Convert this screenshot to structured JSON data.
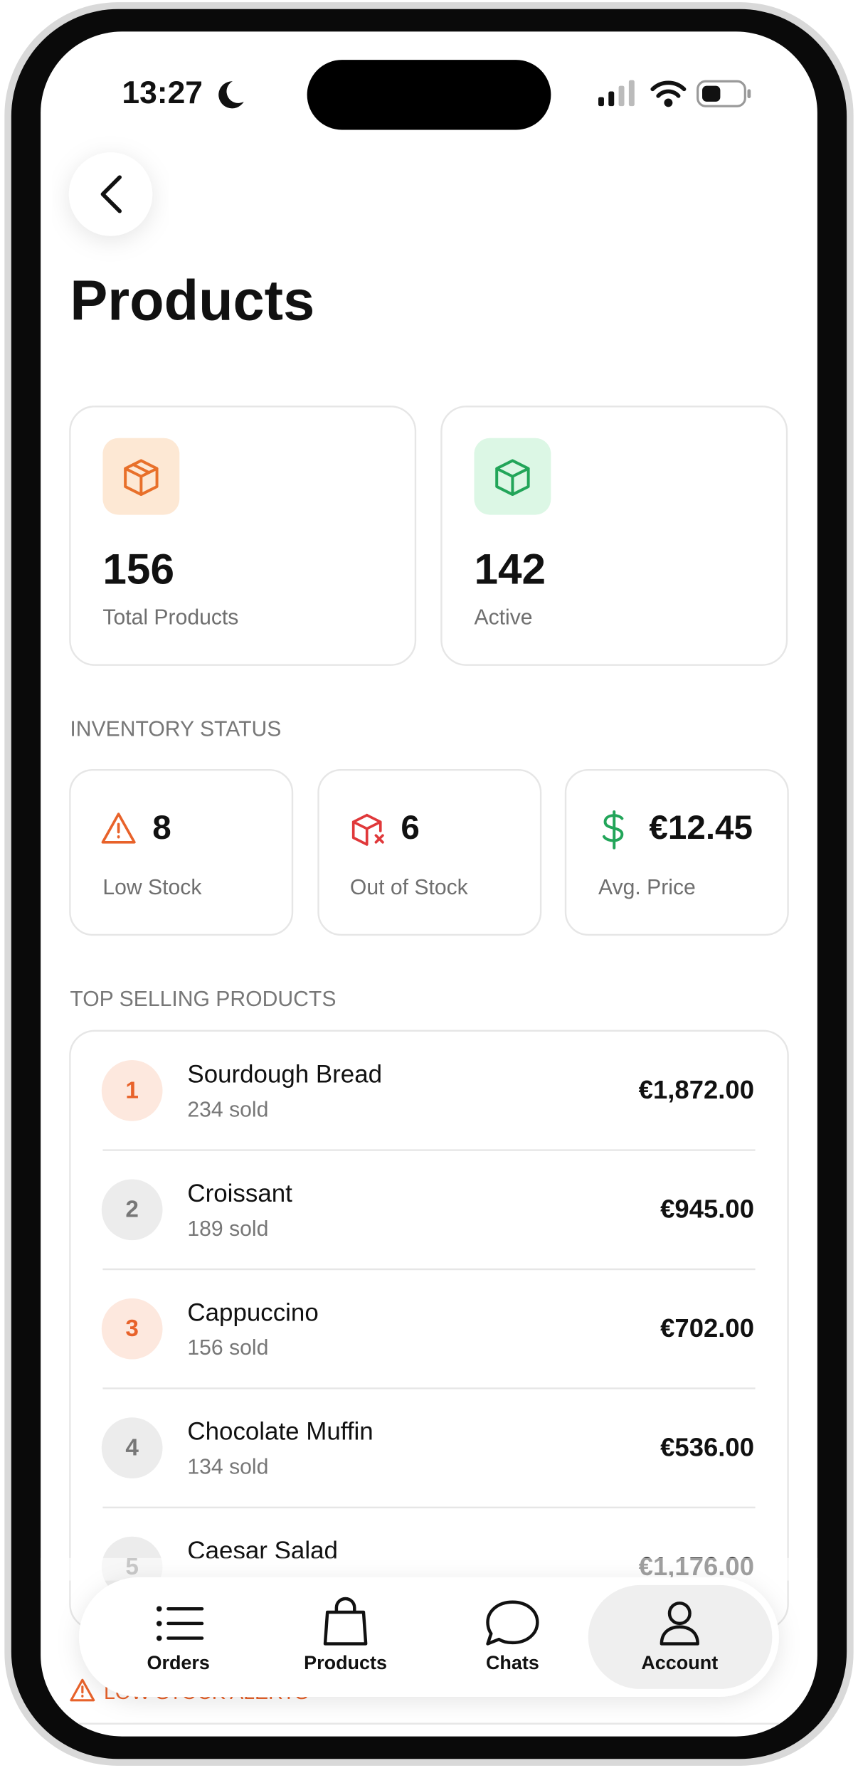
{
  "status_bar": {
    "time": "13:27"
  },
  "header": {
    "title": "Products"
  },
  "stats": [
    {
      "value": "156",
      "label": "Total Products"
    },
    {
      "value": "142",
      "label": "Active"
    }
  ],
  "inventory": {
    "title": "INVENTORY STATUS",
    "cards": [
      {
        "value": "8",
        "label": "Low Stock"
      },
      {
        "value": "6",
        "label": "Out of Stock"
      },
      {
        "value": "€12.45",
        "label": "Avg. Price"
      }
    ]
  },
  "top_selling": {
    "title": "TOP SELLING PRODUCTS",
    "items": [
      {
        "rank": "1",
        "name": "Sourdough Bread",
        "sold": "234 sold",
        "revenue": "€1,872.00"
      },
      {
        "rank": "2",
        "name": "Croissant",
        "sold": "189 sold",
        "revenue": "€945.00"
      },
      {
        "rank": "3",
        "name": "Cappuccino",
        "sold": "156 sold",
        "revenue": "€702.00"
      },
      {
        "rank": "4",
        "name": "Chocolate Muffin",
        "sold": "134 sold",
        "revenue": "€536.00"
      },
      {
        "rank": "5",
        "name": "Caesar Salad",
        "revenue": "€1,176.00"
      }
    ]
  },
  "alerts": {
    "title": "LOW STOCK ALERTS"
  },
  "nav": [
    "Orders",
    "Products",
    "Chats",
    "Account"
  ]
}
